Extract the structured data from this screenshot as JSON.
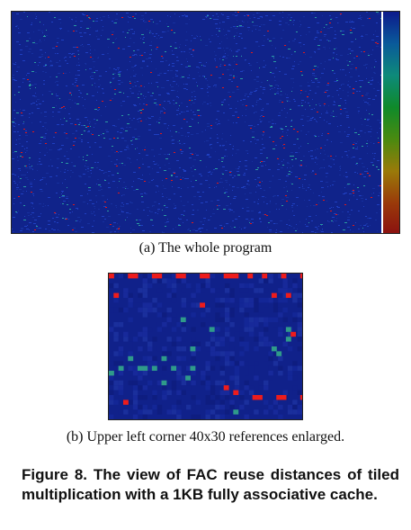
{
  "figure_a": {
    "caption": "(a) The whole program",
    "colors": {
      "background": "#10238a",
      "low": "#1f3fc0",
      "mid": "#2a9aa0",
      "high": "#e01818"
    },
    "colorbar": [
      "#0c1a8c",
      "#0a5a9a",
      "#0e8a7a",
      "#0f8a2a",
      "#4a8a10",
      "#9a7a0a",
      "#9a3a0a",
      "#8a1010"
    ]
  },
  "figure_b": {
    "caption": "(b) Upper left corner 40x30 references enlarged.",
    "grid_columns": 40,
    "grid_rows": 30
  },
  "figure_caption": "Figure 8. The view of FAC reuse distances of tiled multiplication with a 1KB fully associative cache."
}
